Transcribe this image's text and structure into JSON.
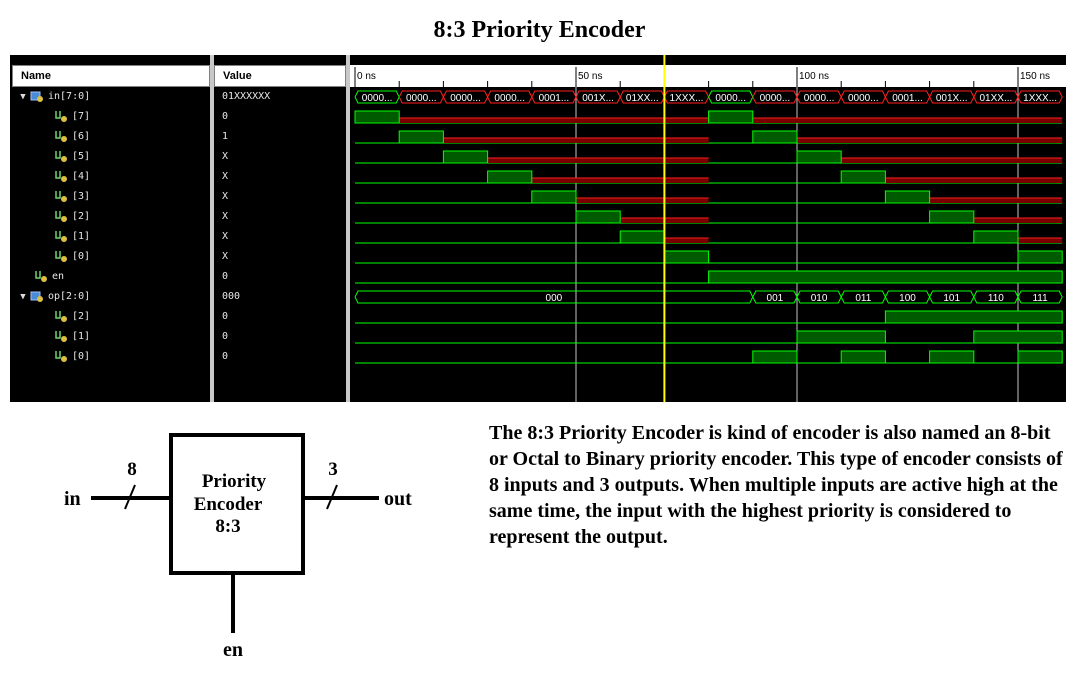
{
  "title": "8:3 Priority Encoder",
  "waveform": {
    "headers": {
      "name": "Name",
      "value": "Value"
    },
    "time_labels": [
      "0 ns",
      "50 ns",
      "100 ns",
      "150 ns"
    ],
    "signals": [
      {
        "name": "in[7:0]",
        "value": "01XXXXXX",
        "kind": "bus",
        "expanded": true
      },
      {
        "name": "[7]",
        "value": "0",
        "kind": "bit"
      },
      {
        "name": "[6]",
        "value": "1",
        "kind": "bit"
      },
      {
        "name": "[5]",
        "value": "X",
        "kind": "bit"
      },
      {
        "name": "[4]",
        "value": "X",
        "kind": "bit"
      },
      {
        "name": "[3]",
        "value": "X",
        "kind": "bit"
      },
      {
        "name": "[2]",
        "value": "X",
        "kind": "bit"
      },
      {
        "name": "[1]",
        "value": "X",
        "kind": "bit"
      },
      {
        "name": "[0]",
        "value": "X",
        "kind": "bit"
      },
      {
        "name": "en",
        "value": "0",
        "kind": "bit"
      },
      {
        "name": "op[2:0]",
        "value": "000",
        "kind": "bus",
        "expanded": true
      },
      {
        "name": "[2]",
        "value": "0",
        "kind": "bit"
      },
      {
        "name": "[1]",
        "value": "0",
        "kind": "bit"
      },
      {
        "name": "[0]",
        "value": "0",
        "kind": "bit"
      }
    ],
    "in_bus_labels": [
      "0000...",
      "0000...",
      "0000...",
      "0000...",
      "0001...",
      "001X...",
      "01XX...",
      "1XXX...",
      "0000...",
      "0000...",
      "0000...",
      "0000...",
      "0001...",
      "001X...",
      "01XX...",
      "1XXX..."
    ],
    "op_bus_labels": [
      "000",
      "001",
      "010",
      "011",
      "100",
      "101",
      "110",
      "111"
    ],
    "colors": {
      "high": "#005a00",
      "x": "#7a0000",
      "line": "#00ff00",
      "xline": "#ff2020",
      "cursor": "#ffff00",
      "grid": "#e6e6e6"
    }
  },
  "diagram": {
    "block_lines": [
      "Priority",
      "Encoder",
      "8:3"
    ],
    "in_label": "in",
    "in_width": "8",
    "out_label": "out",
    "out_width": "3",
    "en_label": "en"
  },
  "description": "The 8:3 Priority Encoder is kind of encoder is also named an 8-bit or Octal to Binary priority encoder. This type of encoder consists of 8 inputs and 3 outputs. When multiple inputs are active high at the same time, the input with the highest priority is considered to represent the output."
}
